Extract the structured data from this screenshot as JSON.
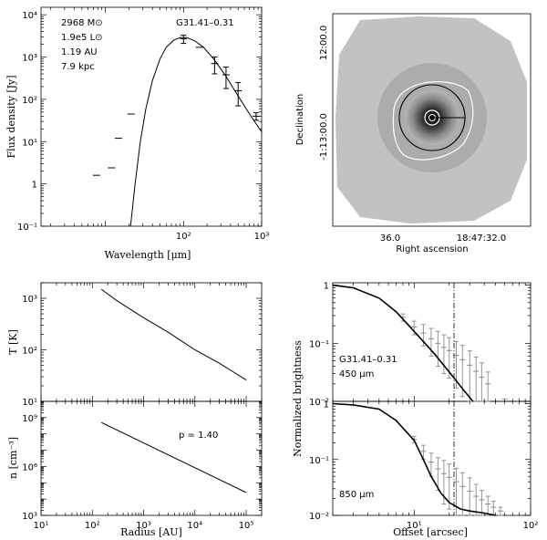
{
  "chart_data": [
    {
      "id": "sed",
      "type": "scatter",
      "xlabel": "Wavelength [μm]",
      "ylabel": "Flux density [Jy]",
      "xscale": "log",
      "yscale": "log",
      "xlim": [
        1.5,
        1000
      ],
      "ylim": [
        0.1,
        15000
      ],
      "x_ticks": [
        {
          "v": 100,
          "label": "10²"
        },
        {
          "v": 1000,
          "label": "10³"
        }
      ],
      "y_ticks": [
        {
          "v": 0.1,
          "label": "10⁻¹"
        },
        {
          "v": 1,
          "label": "1"
        },
        {
          "v": 10,
          "label": "10¹"
        },
        {
          "v": 100,
          "label": "10²"
        },
        {
          "v": 1000,
          "label": "10³"
        },
        {
          "v": 10000,
          "label": "10⁴"
        }
      ],
      "annotations": [
        "2968 M⊙",
        "1.9e5 L⊙",
        "1.19 AU",
        "7.9 kpc"
      ],
      "source_label": "G31.41–0.31",
      "points": [
        {
          "x": 7.7,
          "y": 1.6,
          "yerr": 0
        },
        {
          "x": 12.0,
          "y": 2.4,
          "yerr": 0
        },
        {
          "x": 14.7,
          "y": 12,
          "yerr": 0
        },
        {
          "x": 21.3,
          "y": 45,
          "yerr": 0
        },
        {
          "x": 100,
          "y": 2700,
          "yerr": 600
        },
        {
          "x": 160,
          "y": 1700,
          "yerr": 0
        },
        {
          "x": 250,
          "y": 700,
          "yerr": 300
        },
        {
          "x": 350,
          "y": 380,
          "yerr": 200
        },
        {
          "x": 500,
          "y": 160,
          "yerr": 90
        },
        {
          "x": 850,
          "y": 40,
          "yerr": 8
        }
      ],
      "model": [
        {
          "x": 21,
          "y": 0.1
        },
        {
          "x": 24,
          "y": 1.0
        },
        {
          "x": 28,
          "y": 10
        },
        {
          "x": 33,
          "y": 60
        },
        {
          "x": 40,
          "y": 280
        },
        {
          "x": 50,
          "y": 900
        },
        {
          "x": 60,
          "y": 1700
        },
        {
          "x": 75,
          "y": 2500
        },
        {
          "x": 90,
          "y": 2900
        },
        {
          "x": 110,
          "y": 2900
        },
        {
          "x": 140,
          "y": 2400
        },
        {
          "x": 180,
          "y": 1700
        },
        {
          "x": 250,
          "y": 850
        },
        {
          "x": 350,
          "y": 350
        },
        {
          "x": 500,
          "y": 120
        },
        {
          "x": 700,
          "y": 45
        },
        {
          "x": 1000,
          "y": 17
        }
      ]
    },
    {
      "id": "image",
      "type": "heatmap",
      "xlabel": "Right ascension",
      "ylabel": "Declination",
      "x_ticks": [
        {
          "label": "36.0"
        },
        {
          "label": "18:47:32.0"
        }
      ],
      "y_ticks": [
        {
          "label": "12:00.0"
        },
        {
          "label": "-1:13:00.0"
        }
      ]
    },
    {
      "id": "temperature",
      "type": "line",
      "ylabel": "T [K]",
      "xscale": "log",
      "yscale": "log",
      "xlim": [
        10,
        200000
      ],
      "ylim": [
        10,
        2000
      ],
      "y_ticks": [
        {
          "v": 10,
          "label": "10¹"
        },
        {
          "v": 100,
          "label": "10²"
        },
        {
          "v": 1000,
          "label": "10³"
        }
      ],
      "points": [
        {
          "x": 150,
          "y": 1500
        },
        {
          "x": 300,
          "y": 900
        },
        {
          "x": 1000,
          "y": 420
        },
        {
          "x": 3000,
          "y": 220
        },
        {
          "x": 10000,
          "y": 100
        },
        {
          "x": 30000,
          "y": 55
        },
        {
          "x": 100000,
          "y": 26
        }
      ]
    },
    {
      "id": "density",
      "type": "line",
      "xlabel": "Radius [AU]",
      "ylabel": "n [cm⁻³]",
      "xscale": "log",
      "yscale": "log",
      "xlim": [
        10,
        200000
      ],
      "ylim": [
        1000,
        10000000000.0
      ],
      "x_ticks": [
        {
          "v": 10,
          "label": "10¹"
        },
        {
          "v": 100,
          "label": "10²"
        },
        {
          "v": 1000,
          "label": "10³"
        },
        {
          "v": 10000,
          "label": "10⁴"
        },
        {
          "v": 100000,
          "label": "10⁵"
        }
      ],
      "y_ticks": [
        {
          "v": 1000,
          "label": "10³"
        },
        {
          "v": 1000000,
          "label": "10⁶"
        },
        {
          "v": 1000000000,
          "label": "10⁹"
        }
      ],
      "annotation": "p = 1.40",
      "points": [
        {
          "x": 150,
          "y": 500000000.0
        },
        {
          "x": 100000,
          "y": 25000.0
        }
      ]
    },
    {
      "id": "profile450",
      "type": "line",
      "ylabel": "Normalized brightness",
      "xscale": "log",
      "yscale": "log",
      "xlim": [
        2,
        100
      ],
      "ylim": [
        0.01,
        1.1
      ],
      "y_ticks": [
        {
          "v": 0.01,
          "label": "10⁻²"
        },
        {
          "v": 0.1,
          "label": "10⁻¹"
        },
        {
          "v": 1,
          "label": "1"
        }
      ],
      "source_label": "G31.41–0.31",
      "band_label": "450 μm",
      "beam_marker_x": 22,
      "model": [
        {
          "x": 2,
          "y": 1.0
        },
        {
          "x": 3,
          "y": 0.9
        },
        {
          "x": 5,
          "y": 0.6
        },
        {
          "x": 7,
          "y": 0.35
        },
        {
          "x": 10,
          "y": 0.16
        },
        {
          "x": 15,
          "y": 0.065
        },
        {
          "x": 20,
          "y": 0.032
        },
        {
          "x": 27,
          "y": 0.015
        },
        {
          "x": 32,
          "y": 0.01
        }
      ],
      "observed": [
        {
          "x": 8,
          "y": 0.28,
          "err": 0.04
        },
        {
          "x": 10,
          "y": 0.19,
          "err": 0.05
        },
        {
          "x": 12,
          "y": 0.15,
          "err": 0.06
        },
        {
          "x": 14,
          "y": 0.12,
          "err": 0.06
        },
        {
          "x": 16,
          "y": 0.1,
          "err": 0.06
        },
        {
          "x": 18,
          "y": 0.085,
          "err": 0.055
        },
        {
          "x": 20,
          "y": 0.075,
          "err": 0.05
        },
        {
          "x": 23,
          "y": 0.062,
          "err": 0.045
        },
        {
          "x": 26,
          "y": 0.052,
          "err": 0.04
        },
        {
          "x": 30,
          "y": 0.042,
          "err": 0.032
        },
        {
          "x": 34,
          "y": 0.033,
          "err": 0.025
        },
        {
          "x": 38,
          "y": 0.026,
          "err": 0.02
        },
        {
          "x": 43,
          "y": 0.02,
          "err": 0.012
        },
        {
          "x": 60,
          "y": 0.011,
          "err": 0
        }
      ]
    },
    {
      "id": "profile850",
      "type": "line",
      "xlabel": "Offset [arcsec]",
      "xscale": "log",
      "yscale": "log",
      "xlim": [
        2,
        100
      ],
      "ylim": [
        0.01,
        1.1
      ],
      "x_ticks": [
        {
          "v": 10,
          "label": "10¹"
        },
        {
          "v": 100,
          "label": "10²"
        }
      ],
      "y_ticks": [
        {
          "v": 0.01,
          "label": "10⁻²"
        },
        {
          "v": 0.1,
          "label": "10⁻¹"
        },
        {
          "v": 1,
          "label": "1"
        }
      ],
      "band_label": "850 μm",
      "beam_marker_x": 22,
      "model": [
        {
          "x": 2,
          "y": 1.0
        },
        {
          "x": 3,
          "y": 0.95
        },
        {
          "x": 5,
          "y": 0.8
        },
        {
          "x": 7,
          "y": 0.5
        },
        {
          "x": 10,
          "y": 0.22
        },
        {
          "x": 12,
          "y": 0.1
        },
        {
          "x": 14,
          "y": 0.05
        },
        {
          "x": 17,
          "y": 0.025
        },
        {
          "x": 20,
          "y": 0.017
        },
        {
          "x": 25,
          "y": 0.013
        },
        {
          "x": 30,
          "y": 0.012
        },
        {
          "x": 40,
          "y": 0.011
        },
        {
          "x": 50,
          "y": 0.01
        }
      ],
      "observed": [
        {
          "x": 10,
          "y": 0.23,
          "err": 0.03
        },
        {
          "x": 12,
          "y": 0.14,
          "err": 0.04
        },
        {
          "x": 14,
          "y": 0.09,
          "err": 0.04
        },
        {
          "x": 16,
          "y": 0.068,
          "err": 0.04
        },
        {
          "x": 18,
          "y": 0.056,
          "err": 0.04
        },
        {
          "x": 20,
          "y": 0.048,
          "err": 0.035
        },
        {
          "x": 23,
          "y": 0.04,
          "err": 0.03
        },
        {
          "x": 26,
          "y": 0.033,
          "err": 0.025
        },
        {
          "x": 30,
          "y": 0.027,
          "err": 0.02
        },
        {
          "x": 34,
          "y": 0.022,
          "err": 0.014
        },
        {
          "x": 38,
          "y": 0.019,
          "err": 0.009
        },
        {
          "x": 43,
          "y": 0.016,
          "err": 0.006
        },
        {
          "x": 48,
          "y": 0.014,
          "err": 0.004
        },
        {
          "x": 55,
          "y": 0.012,
          "err": 0.002
        }
      ]
    }
  ]
}
